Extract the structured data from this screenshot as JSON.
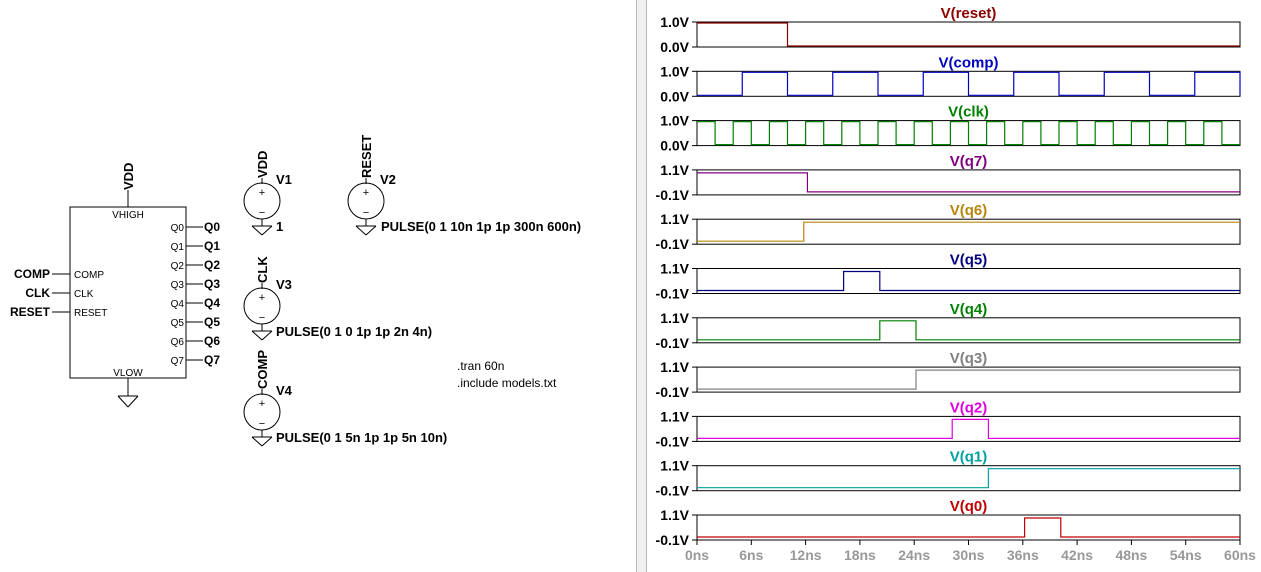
{
  "schematic": {
    "block": {
      "top_label": "VHIGH",
      "bottom_label": "VLOW",
      "inputs": [
        "COMP",
        "CLK",
        "RESET"
      ],
      "outputs": [
        "Q0",
        "Q1",
        "Q2",
        "Q3",
        "Q4",
        "Q5",
        "Q6",
        "Q7"
      ]
    },
    "vdd_flag": "VDD",
    "sources": {
      "v1": {
        "name": "V1",
        "net": "VDD",
        "value": "1"
      },
      "v2": {
        "name": "V2",
        "net": "RESET",
        "value": "PULSE(0 1 10n 1p 1p 300n 600n)"
      },
      "v3": {
        "name": "V3",
        "net": "CLK",
        "value": "PULSE(0 1 0 1p 1p 2n 4n)"
      },
      "v4": {
        "name": "V4",
        "net": "COMP",
        "value": "PULSE(0 1 5n 1p 1p 5n 10n)"
      }
    },
    "directives": [
      ".tran 60n",
      ".include models.txt"
    ]
  },
  "waveform": {
    "x_ticks": [
      "0ns",
      "6ns",
      "12ns",
      "18ns",
      "24ns",
      "30ns",
      "36ns",
      "42ns",
      "48ns",
      "54ns",
      "60ns"
    ],
    "traces": [
      {
        "name": "V(reset)",
        "color": "#8b0000",
        "ticks": [
          "1.0V",
          "0.0V"
        ],
        "logic": [
          [
            0,
            1
          ],
          [
            10,
            0
          ]
        ]
      },
      {
        "name": "V(comp)",
        "color": "#0000c0",
        "ticks": [
          "1.0V",
          "0.0V"
        ],
        "logic": "comp"
      },
      {
        "name": "V(clk)",
        "color": "#008000",
        "ticks": [
          "1.0V",
          "0.0V"
        ],
        "logic": "clk"
      },
      {
        "name": "V(q7)",
        "color": "#800080",
        "ticks": [
          "1.1V",
          "-0.1V"
        ],
        "logic": [
          [
            0,
            1
          ],
          [
            12.2,
            0
          ]
        ]
      },
      {
        "name": "V(q6)",
        "color": "#b8860b",
        "ticks": [
          "1.1V",
          "-0.1V"
        ],
        "logic": [
          [
            0,
            0
          ],
          [
            11.8,
            1
          ]
        ]
      },
      {
        "name": "V(q5)",
        "color": "#000080",
        "ticks": [
          "1.1V",
          "-0.1V"
        ],
        "logic": [
          [
            0,
            0
          ],
          [
            16.2,
            1
          ],
          [
            20.2,
            0
          ]
        ]
      },
      {
        "name": "V(q4)",
        "color": "#008000",
        "ticks": [
          "1.1V",
          "-0.1V"
        ],
        "logic": [
          [
            0,
            0
          ],
          [
            20.2,
            1
          ],
          [
            24.2,
            0
          ]
        ]
      },
      {
        "name": "V(q3)",
        "color": "#808080",
        "ticks": [
          "1.1V",
          "-0.1V"
        ],
        "logic": [
          [
            0,
            0
          ],
          [
            24.2,
            1
          ]
        ]
      },
      {
        "name": "V(q2)",
        "color": "#e000e0",
        "ticks": [
          "1.1V",
          "-0.1V"
        ],
        "logic": [
          [
            0,
            0
          ],
          [
            28.2,
            1
          ],
          [
            32.2,
            0
          ]
        ]
      },
      {
        "name": "V(q1)",
        "color": "#00a0a0",
        "ticks": [
          "1.1V",
          "-0.1V"
        ],
        "logic": [
          [
            0,
            0
          ],
          [
            32.2,
            1
          ]
        ]
      },
      {
        "name": "V(q0)",
        "color": "#c00000",
        "ticks": [
          "1.1V",
          "-0.1V"
        ],
        "logic": [
          [
            0,
            0
          ],
          [
            36.2,
            1
          ],
          [
            40.2,
            0
          ]
        ]
      }
    ]
  }
}
